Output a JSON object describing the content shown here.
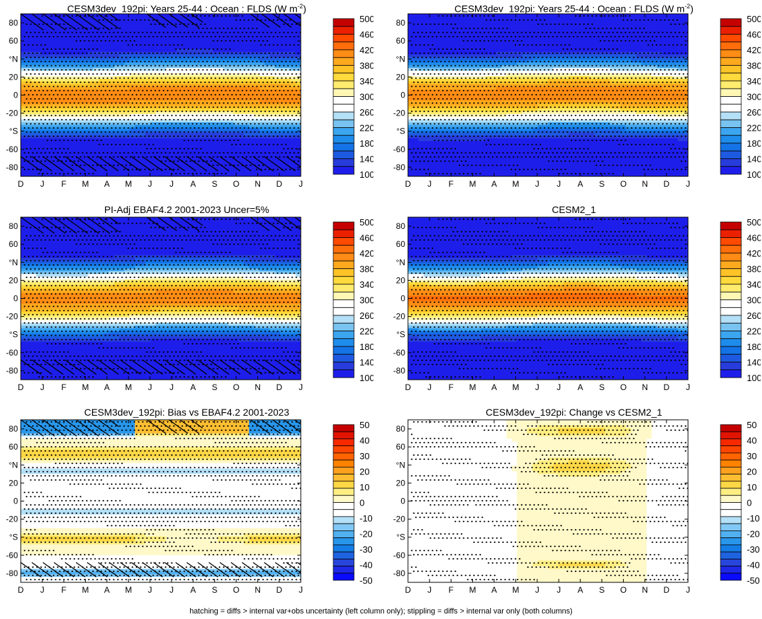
{
  "chart_data": [
    {
      "type": "heatmap",
      "title": "CESM3dev_192pi: Years 25-44 : Ocean : FLDS (W m",
      "title_sup": "-2",
      "title_end": ")",
      "field": "model_total",
      "hatching": true,
      "stippling": true,
      "x_ticks": [
        "D",
        "J",
        "F",
        "M",
        "A",
        "M",
        "J",
        "J",
        "A",
        "S",
        "O",
        "N",
        "D",
        "J"
      ],
      "y_ticks": [
        80,
        60,
        "°N",
        20,
        0,
        -20,
        "°S",
        -60,
        -80
      ],
      "ylim": [
        -90,
        90
      ],
      "colorbar_levels": [
        500,
        480,
        460,
        440,
        420,
        400,
        380,
        360,
        340,
        320,
        300,
        280,
        260,
        240,
        220,
        200,
        180,
        160,
        140,
        120,
        100
      ],
      "colorbar_labels": [
        "500",
        "460",
        "420",
        "380",
        "340",
        "300",
        "260",
        "220",
        "180",
        "140",
        "100"
      ],
      "colorbar_colors": [
        "#c50000",
        "#eb2000",
        "#ff4a00",
        "#ff6e0a",
        "#ff8c14",
        "#ffa91e",
        "#ffc328",
        "#ffda3c",
        "#ffec6e",
        "#fff7b4",
        "#ffffff",
        "#ffffff",
        "#b4e0f7",
        "#78c3f0",
        "#3ca5f0",
        "#1e8ceb",
        "#1473e6",
        "#1e5ae1",
        "#283cdc",
        "#1e1eeb"
      ]
    },
    {
      "type": "heatmap",
      "title": "CESM3dev_192pi: Years 25-44 : Ocean : FLDS (W m",
      "title_sup": "-2",
      "title_end": ")",
      "field": "model_total",
      "hatching": false,
      "stippling": true,
      "x_ticks": [
        "D",
        "J",
        "F",
        "M",
        "A",
        "M",
        "J",
        "J",
        "A",
        "S",
        "O",
        "N",
        "D",
        "J"
      ],
      "y_ticks": [
        80,
        60,
        "°N",
        20,
        0,
        -20,
        "°S",
        -60,
        -80
      ],
      "ylim": [
        -90,
        90
      ],
      "colorbar_labels": [
        "500",
        "460",
        "420",
        "380",
        "340",
        "300",
        "260",
        "220",
        "180",
        "140",
        "100"
      ]
    },
    {
      "type": "heatmap",
      "title": "PI-Adj EBAF4.2 2001-2023 Uncer=5%",
      "field": "obs_total",
      "hatching": true,
      "stippling": true,
      "x_ticks": [
        "D",
        "J",
        "F",
        "M",
        "A",
        "M",
        "J",
        "J",
        "A",
        "S",
        "O",
        "N",
        "D",
        "J"
      ],
      "y_ticks": [
        80,
        60,
        "°N",
        20,
        0,
        -20,
        "°S",
        -60,
        -80
      ],
      "ylim": [
        -90,
        90
      ],
      "colorbar_labels": [
        "500",
        "460",
        "420",
        "380",
        "340",
        "300",
        "260",
        "220",
        "180",
        "140",
        "100"
      ]
    },
    {
      "type": "heatmap",
      "title": "CESM2_1",
      "field": "model2_total",
      "hatching": false,
      "stippling": true,
      "x_ticks": [
        "D",
        "J",
        "F",
        "M",
        "A",
        "M",
        "J",
        "J",
        "A",
        "S",
        "O",
        "N",
        "D",
        "J"
      ],
      "y_ticks": [
        80,
        60,
        "°N",
        20,
        0,
        -20,
        "°S",
        -60,
        -80
      ],
      "ylim": [
        -90,
        90
      ],
      "colorbar_labels": [
        "500",
        "460",
        "420",
        "380",
        "340",
        "300",
        "260",
        "220",
        "180",
        "140",
        "100"
      ]
    },
    {
      "type": "heatmap",
      "title": "CESM3dev_192pi: Bias vs EBAF4.2 2001-2023",
      "field": "bias",
      "hatching": true,
      "stippling": true,
      "x_ticks": [
        "D",
        "J",
        "F",
        "M",
        "A",
        "M",
        "J",
        "J",
        "A",
        "S",
        "O",
        "N",
        "D",
        "J"
      ],
      "y_ticks": [
        80,
        60,
        "°N",
        20,
        0,
        -20,
        "°S",
        -60,
        -80
      ],
      "ylim": [
        -90,
        90
      ],
      "colorbar_levels": [
        55,
        50,
        45,
        40,
        35,
        30,
        25,
        20,
        15,
        10,
        5,
        0,
        -5,
        -10,
        -15,
        -20,
        -25,
        -30,
        -35,
        -40,
        -45,
        -50,
        -55
      ],
      "colorbar_labels": [
        "50",
        "40",
        "30",
        "20",
        "10",
        "0",
        "-10",
        "-20",
        "-30",
        "-40",
        "-50"
      ]
    },
    {
      "type": "heatmap",
      "title": "CESM3dev_192pi: Change vs CESM2_1",
      "field": "change",
      "hatching": false,
      "stippling": true,
      "x_ticks": [
        "D",
        "J",
        "F",
        "M",
        "A",
        "M",
        "J",
        "J",
        "A",
        "S",
        "O",
        "N",
        "D",
        "J"
      ],
      "y_ticks": [
        80,
        60,
        "°N",
        20,
        0,
        -20,
        "°S",
        -60,
        -80
      ],
      "ylim": [
        -90,
        90
      ],
      "colorbar_labels": [
        "50",
        "40",
        "30",
        "20",
        "10",
        "0",
        "-10",
        "-20",
        "-30",
        "-40",
        "-50"
      ]
    }
  ],
  "footer": "hatching = diffs > internal var+obs uncertainty (left column only); stippling = diffs > internal var only (both columns)"
}
